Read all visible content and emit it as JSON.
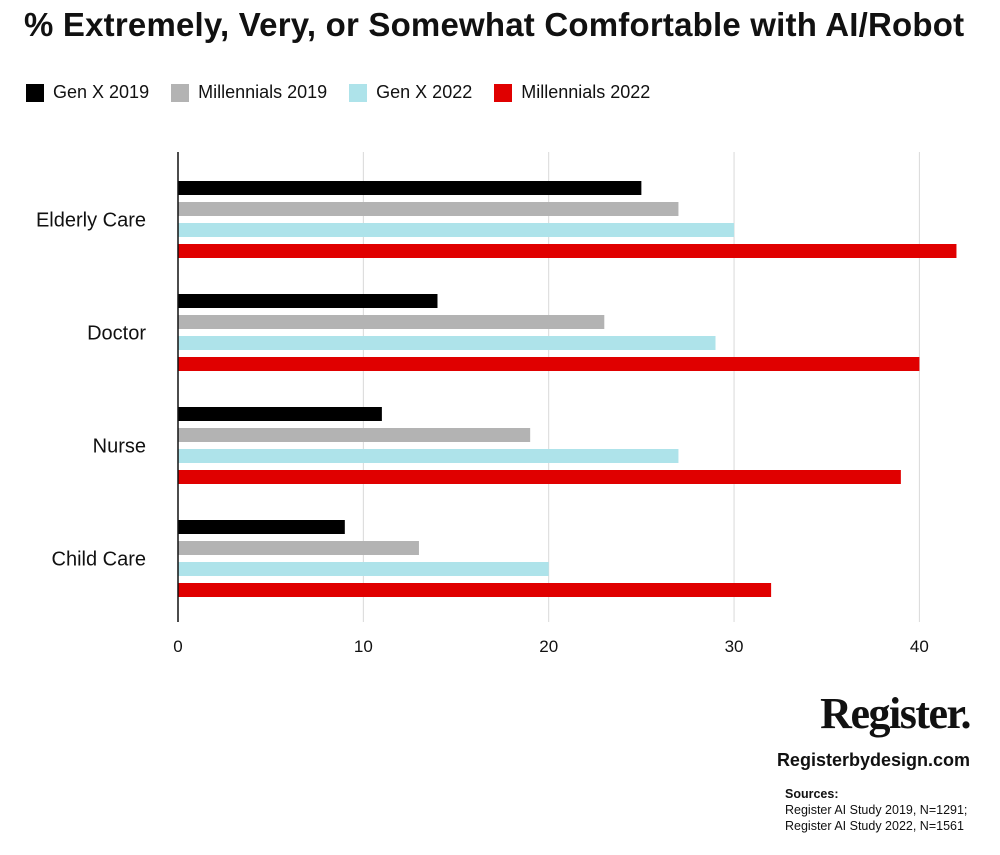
{
  "chart_data": {
    "type": "bar",
    "orientation": "horizontal",
    "title": "% Extremely, Very, or Somewhat Comfortable with AI/Robot",
    "categories": [
      "Elderly Care",
      "Doctor",
      "Nurse",
      "Child Care"
    ],
    "series": [
      {
        "name": "Gen X 2019",
        "color": "#000000",
        "values": [
          25,
          14,
          11,
          9
        ]
      },
      {
        "name": "Millennials 2019",
        "color": "#b3b3b3",
        "values": [
          27,
          23,
          19,
          13
        ]
      },
      {
        "name": "Gen X 2022",
        "color": "#aee3ea",
        "values": [
          30,
          29,
          27,
          20
        ]
      },
      {
        "name": "Millennials 2022",
        "color": "#e00000",
        "values": [
          42,
          40,
          39,
          32
        ]
      }
    ],
    "xlim": [
      0,
      43
    ],
    "xticks": [
      0,
      10,
      20,
      30,
      40
    ],
    "xlabel": "",
    "ylabel": "",
    "grid": true,
    "legend": "top-left"
  },
  "footer": {
    "brand": "Register.",
    "site": "Registerbydesign.com",
    "sources_label": "Sources:",
    "sources": [
      "Register AI Study 2019, N=1291;",
      "Register AI Study 2022, N=1561"
    ]
  }
}
